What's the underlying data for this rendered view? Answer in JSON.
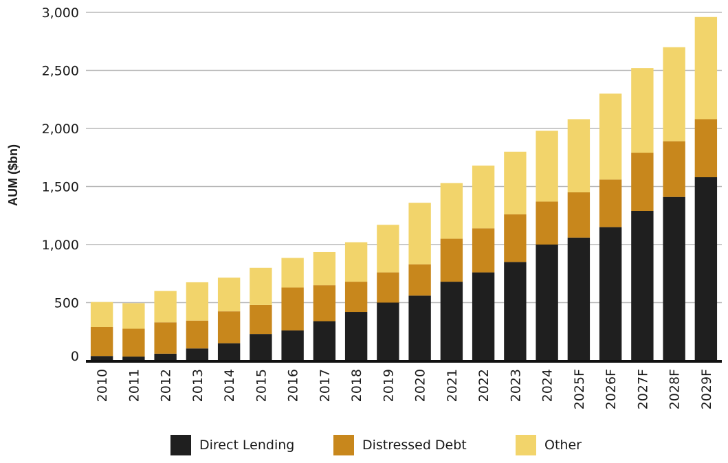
{
  "chart_data": {
    "type": "bar",
    "stacked": true,
    "title": "",
    "xlabel": "",
    "ylabel": "AUM ($bn)",
    "ylim": [
      0,
      3000
    ],
    "yticks": [
      "0",
      "500",
      "1,000",
      "1,500",
      "2,000",
      "2,500",
      "3,000"
    ],
    "ytick_values": [
      0,
      500,
      1000,
      1500,
      2000,
      2500,
      3000
    ],
    "grid": true,
    "legend_position": "bottom",
    "categories": [
      "2010",
      "2011",
      "2012",
      "2013",
      "2014",
      "2015",
      "2016",
      "2017",
      "2018",
      "2019",
      "2020",
      "2021",
      "2022",
      "2023",
      "2024",
      "2025F",
      "2026F",
      "2027F",
      "2028F",
      "2029F"
    ],
    "series": [
      {
        "name": "Direct Lending",
        "color": "#1f1f1f",
        "values": [
          40,
          35,
          60,
          105,
          150,
          230,
          260,
          340,
          420,
          500,
          560,
          680,
          760,
          850,
          1000,
          1060,
          1150,
          1290,
          1410,
          1580
        ]
      },
      {
        "name": "Distressed Debt",
        "color": "#c8871c",
        "values": [
          250,
          240,
          270,
          240,
          275,
          250,
          370,
          310,
          260,
          260,
          270,
          370,
          380,
          410,
          370,
          390,
          410,
          500,
          480,
          500
        ]
      },
      {
        "name": "Other",
        "color": "#f2d46b",
        "values": [
          215,
          220,
          270,
          330,
          290,
          320,
          255,
          285,
          340,
          410,
          530,
          480,
          540,
          540,
          610,
          630,
          740,
          730,
          810,
          880
        ]
      }
    ]
  }
}
